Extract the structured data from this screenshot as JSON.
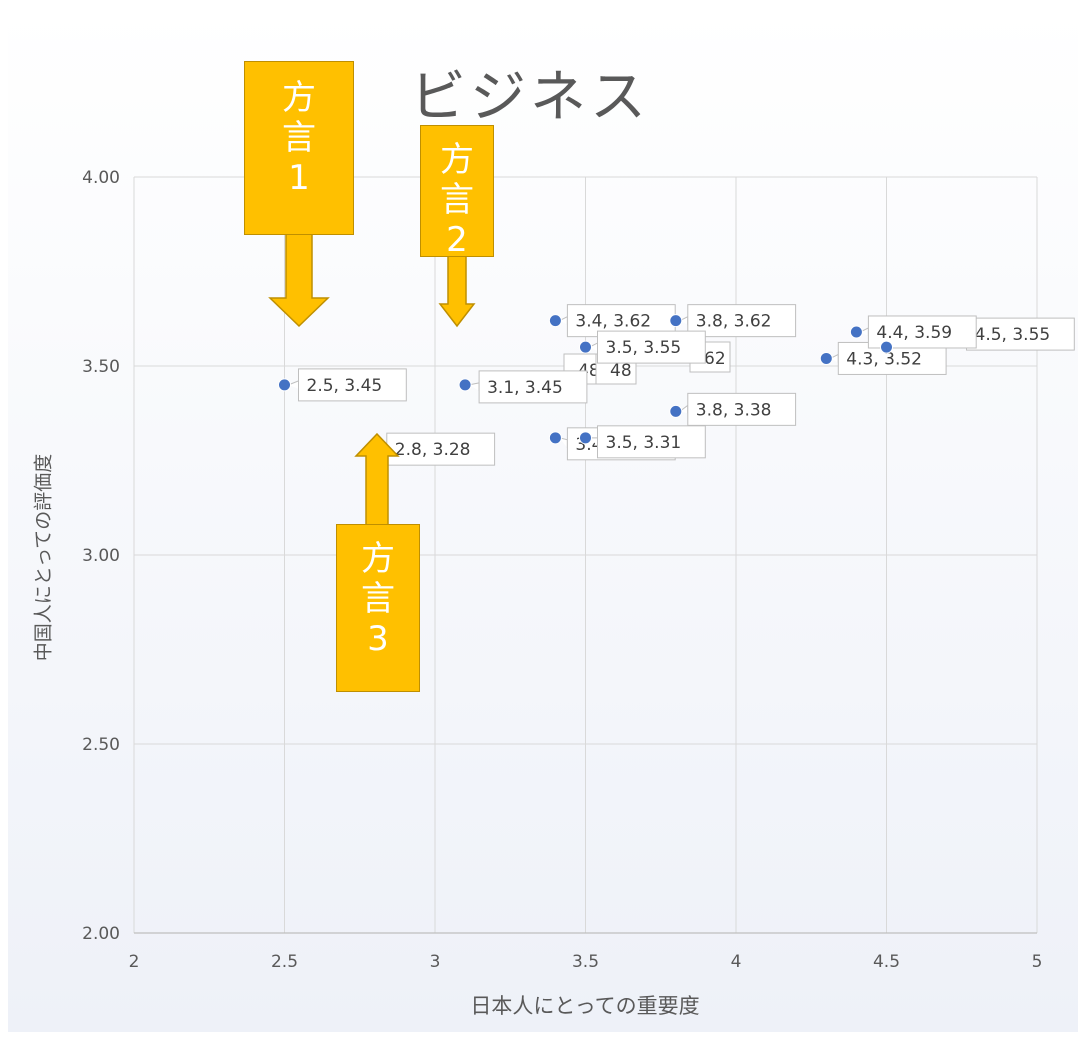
{
  "chart_data": {
    "type": "scatter",
    "title": "ビジネス",
    "xlabel": "日本人にとっての重要度",
    "ylabel": "中国人にとっての評価度",
    "xlim": [
      2,
      5
    ],
    "ylim": [
      2.0,
      4.0
    ],
    "x_ticks": [
      "2",
      "2.5",
      "3",
      "3.5",
      "4",
      "4.5",
      "5"
    ],
    "y_ticks": [
      "2.00",
      "2.50",
      "3.00",
      "3.50",
      "4.00"
    ],
    "grid": true,
    "legend": "none",
    "marker_color": "#4472c4",
    "points": [
      {
        "x": 2.5,
        "y": 3.45,
        "label": "2.5, 3.45"
      },
      {
        "x": 3.1,
        "y": 3.45,
        "label": "3.1, 3.45"
      },
      {
        "x": 3.4,
        "y": 3.62,
        "label": "3.4, 3.62"
      },
      {
        "x": 3.8,
        "y": 3.62,
        "label": "3.8, 3.62"
      },
      {
        "x": 3.5,
        "y": 3.55,
        "label": "3.5, 3.55"
      },
      {
        "x": 3.4,
        "y": 3.31,
        "label": "3.4, 3.31"
      },
      {
        "x": 3.5,
        "y": 3.31,
        "label": "3.5, 3.31"
      },
      {
        "x": 3.8,
        "y": 3.38,
        "label": "3.8, 3.38"
      },
      {
        "x": 4.4,
        "y": 3.59,
        "label": "4.4, 3.59"
      },
      {
        "x": 4.3,
        "y": 3.52,
        "label": "4.3, 3.52"
      },
      {
        "x": 4.5,
        "y": 3.55,
        "label": "4.5, 3.55"
      }
    ],
    "overlapped_label_fragments": [
      "48",
      "48",
      "62"
    ],
    "annotation_point": {
      "x": 2.8,
      "y": 3.28,
      "label": "2.8, 3.28"
    },
    "callouts": [
      {
        "lines": [
          "方",
          "言",
          "1"
        ]
      },
      {
        "lines": [
          "方",
          "言",
          "2"
        ]
      },
      {
        "lines": [
          "方",
          "言",
          "3"
        ]
      }
    ],
    "callout_color": "#ffc000"
  }
}
